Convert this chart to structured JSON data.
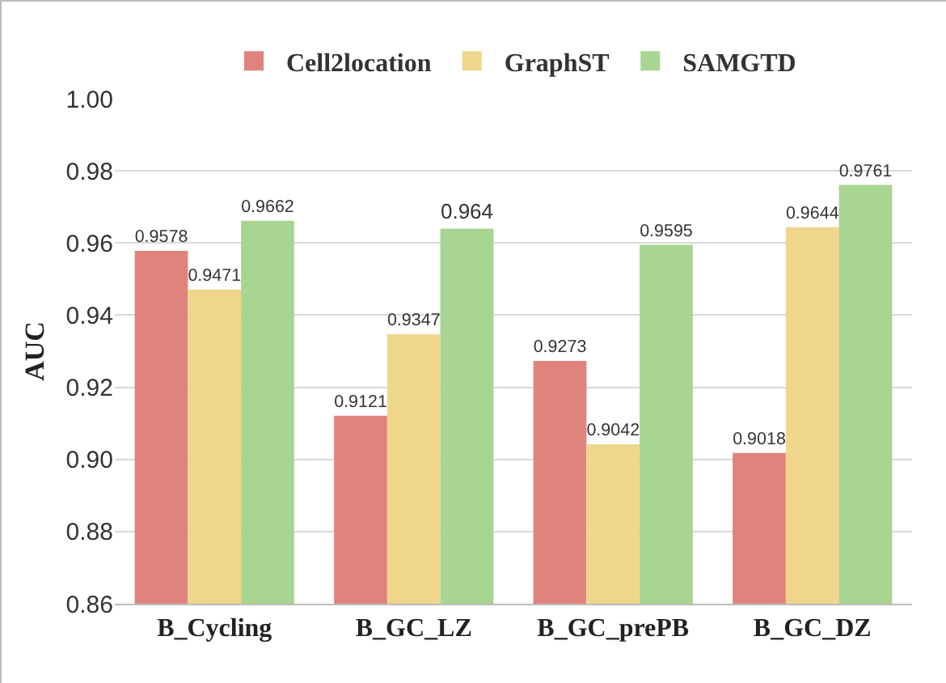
{
  "chart_data": {
    "type": "bar",
    "ylabel": "AUC",
    "categories": [
      "B_Cycling",
      "B_GC_LZ",
      "B_GC_prePB",
      "B_GC_DZ"
    ],
    "series": [
      {
        "name": "Cell2location",
        "color": "#e0837c",
        "values": [
          0.9578,
          0.9121,
          0.9273,
          0.9018
        ]
      },
      {
        "name": "GraphST",
        "color": "#f0d68c",
        "values": [
          0.9471,
          0.9347,
          0.9042,
          0.9644
        ]
      },
      {
        "name": "SAMGTD",
        "color": "#a8d591",
        "values": [
          0.9662,
          0.964,
          0.9595,
          0.9761
        ]
      }
    ],
    "ylim": [
      0.86,
      1.0
    ],
    "yticks": [
      {
        "value": 0.86,
        "label": "0.86"
      },
      {
        "value": 0.88,
        "label": "0.88"
      },
      {
        "value": 0.9,
        "label": "0.90"
      },
      {
        "value": 0.92,
        "label": "0.92"
      },
      {
        "value": 0.94,
        "label": "0.94"
      },
      {
        "value": 0.96,
        "label": "0.96"
      },
      {
        "value": 0.98,
        "label": "0.98"
      },
      {
        "value": 1.0,
        "label": "1.00"
      }
    ],
    "grid": "y",
    "legend": "top",
    "data_labels": true
  }
}
